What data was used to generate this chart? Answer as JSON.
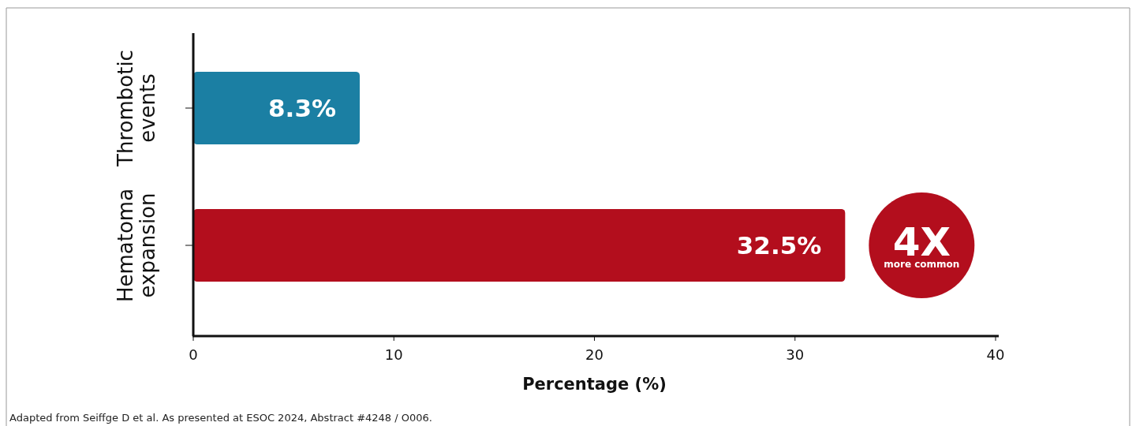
{
  "chart_data": {
    "type": "bar",
    "orientation": "horizontal",
    "categories": [
      "Thrombotic events",
      "Hematoma expansion"
    ],
    "values": [
      8.3,
      32.5
    ],
    "colors": [
      "#1b7fa3",
      "#b30e1d"
    ],
    "value_labels": [
      "8.3%",
      "32.5%"
    ],
    "xlim": [
      0,
      40
    ],
    "xticks": [
      0,
      10,
      20,
      30,
      40
    ],
    "xlabel": "Percentage (%)",
    "grid": false,
    "annotations": [
      "4X",
      "more common",
      "Adapted from Seiffge D et al. As presented at ESOC 2024, Abstract #4248 / O006."
    ]
  }
}
